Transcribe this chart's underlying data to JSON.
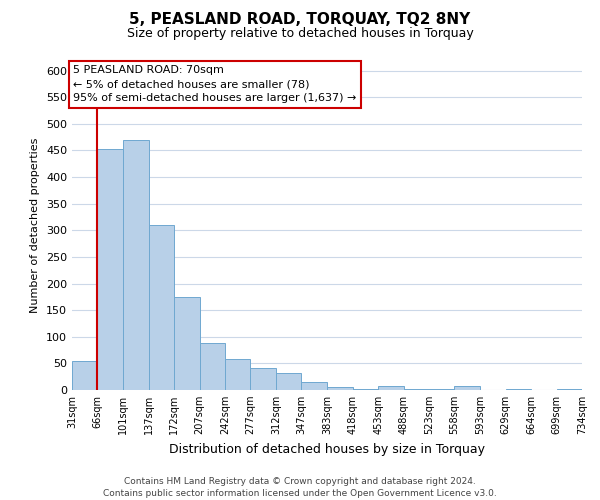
{
  "title": "5, PEASLAND ROAD, TORQUAY, TQ2 8NY",
  "subtitle": "Size of property relative to detached houses in Torquay",
  "xlabel": "Distribution of detached houses by size in Torquay",
  "ylabel": "Number of detached properties",
  "bar_edges": [
    31,
    66,
    101,
    137,
    172,
    207,
    242,
    277,
    312,
    347,
    383,
    418,
    453,
    488,
    523,
    558,
    593,
    629,
    664,
    699,
    734
  ],
  "bar_heights": [
    55,
    453,
    470,
    310,
    175,
    88,
    58,
    42,
    32,
    15,
    6,
    1,
    8,
    1,
    1,
    8,
    0,
    1,
    0,
    1
  ],
  "bar_color": "#b8d0e8",
  "bar_edgecolor": "#6fa8d0",
  "property_line_x": 66,
  "property_line_color": "#cc0000",
  "annotation_title": "5 PEASLAND ROAD: 70sqm",
  "annotation_line1": "← 5% of detached houses are smaller (78)",
  "annotation_line2": "95% of semi-detached houses are larger (1,637) →",
  "annotation_box_facecolor": "#ffffff",
  "annotation_box_edgecolor": "#cc0000",
  "ylim": [
    0,
    620
  ],
  "yticks": [
    0,
    50,
    100,
    150,
    200,
    250,
    300,
    350,
    400,
    450,
    500,
    550,
    600
  ],
  "tick_labels": [
    "31sqm",
    "66sqm",
    "101sqm",
    "137sqm",
    "172sqm",
    "207sqm",
    "242sqm",
    "277sqm",
    "312sqm",
    "347sqm",
    "383sqm",
    "418sqm",
    "453sqm",
    "488sqm",
    "523sqm",
    "558sqm",
    "593sqm",
    "629sqm",
    "664sqm",
    "699sqm",
    "734sqm"
  ],
  "footer_line1": "Contains HM Land Registry data © Crown copyright and database right 2024.",
  "footer_line2": "Contains public sector information licensed under the Open Government Licence v3.0.",
  "background_color": "#ffffff",
  "grid_color": "#ccd8e8",
  "title_fontsize": 11,
  "subtitle_fontsize": 9,
  "ylabel_fontsize": 8,
  "xlabel_fontsize": 9,
  "ytick_fontsize": 8,
  "xtick_fontsize": 7,
  "ann_fontsize": 8,
  "footer_fontsize": 6.5
}
